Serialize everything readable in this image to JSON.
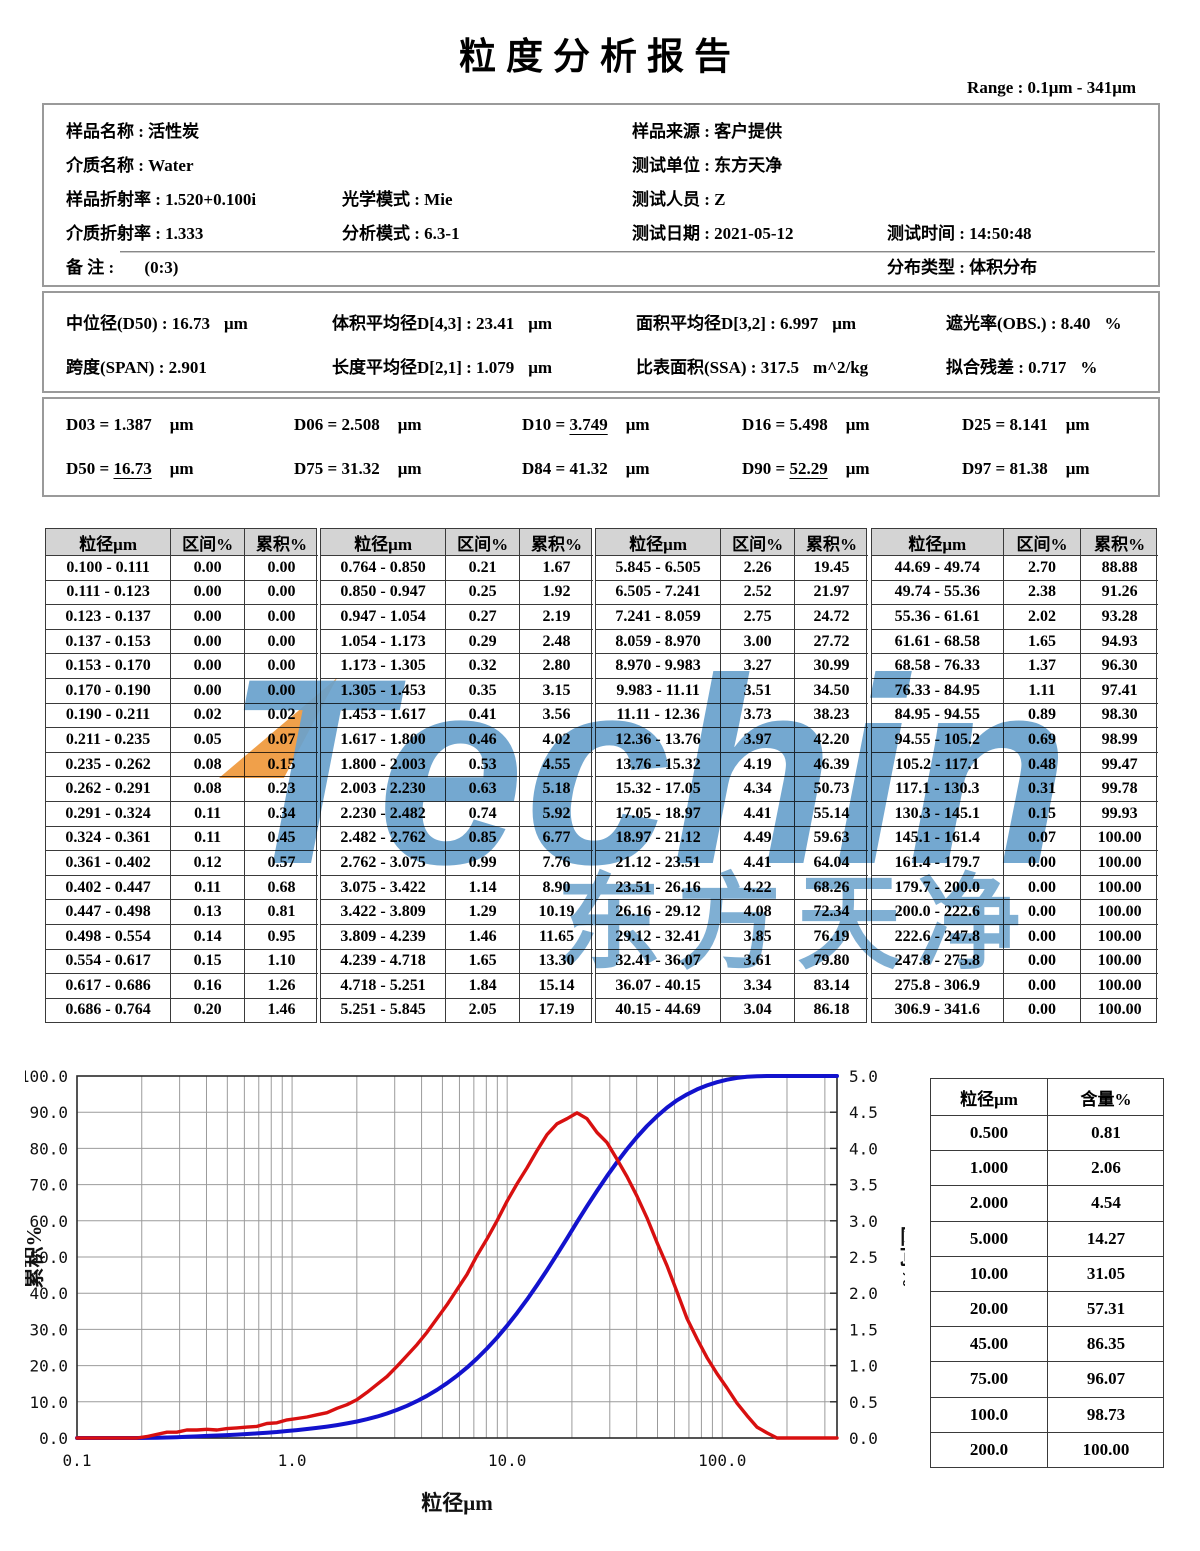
{
  "title": "粒度分析报告",
  "range_label": "Range : 0.1μm - 341μm",
  "info": {
    "sample_name": {
      "label": "样品名称",
      "value": "活性炭"
    },
    "sample_source": {
      "label": "样品来源",
      "value": "客户提供"
    },
    "medium_name": {
      "label": "介质名称",
      "value": "Water"
    },
    "test_unit": {
      "label": "测试单位",
      "value": "东方天净"
    },
    "sample_ri": {
      "label": "样品折射率",
      "value": "1.520+0.100i"
    },
    "optical_mode": {
      "label": "光学模式",
      "value": "Mie"
    },
    "tester": {
      "label": "测试人员",
      "value": "Z"
    },
    "medium_ri": {
      "label": "介质折射率",
      "value": "1.333"
    },
    "analysis_mode": {
      "label": "分析模式",
      "value": "6.3-1"
    },
    "test_date": {
      "label": "测试日期",
      "value": "2021-05-12"
    },
    "test_time": {
      "label": "测试时间",
      "value": "14:50:48"
    },
    "remark": {
      "label": "备  注",
      "value": "(0:3)"
    },
    "dist_type": {
      "label": "分布类型",
      "value": "体积分布"
    }
  },
  "stats": [
    [
      {
        "label": "中位径(D50)",
        "value": "16.73",
        "unit": "μm"
      },
      {
        "label": "体积平均径D[4,3]",
        "value": "23.41",
        "unit": "μm"
      },
      {
        "label": "面积平均径D[3,2]",
        "value": "6.997",
        "unit": "μm"
      },
      {
        "label": "遮光率(OBS.)",
        "value": "8.40",
        "unit": "%"
      }
    ],
    [
      {
        "label": "跨度(SPAN)",
        "value": "2.901",
        "unit": ""
      },
      {
        "label": "长度平均径D[2,1]",
        "value": "1.079",
        "unit": "μm"
      },
      {
        "label": "比表面积(SSA)",
        "value": "317.5",
        "unit": "m^2/kg"
      },
      {
        "label": "拟合残差",
        "value": "0.717",
        "unit": "%"
      }
    ]
  ],
  "d_values": [
    [
      {
        "name": "D03",
        "value": "1.387",
        "unit": "μm",
        "underline": false
      },
      {
        "name": "D06",
        "value": "2.508",
        "unit": "μm",
        "underline": false
      },
      {
        "name": "D10",
        "value": "3.749",
        "unit": "μm",
        "underline": true
      },
      {
        "name": "D16",
        "value": "5.498",
        "unit": "μm",
        "underline": false
      },
      {
        "name": "D25",
        "value": "8.141",
        "unit": "μm",
        "underline": false
      }
    ],
    [
      {
        "name": "D50",
        "value": "16.73",
        "unit": "μm",
        "underline": true
      },
      {
        "name": "D75",
        "value": "31.32",
        "unit": "μm",
        "underline": false
      },
      {
        "name": "D84",
        "value": "41.32",
        "unit": "μm",
        "underline": false
      },
      {
        "name": "D90",
        "value": "52.29",
        "unit": "μm",
        "underline": true
      },
      {
        "name": "D97",
        "value": "81.38",
        "unit": "μm",
        "underline": false
      }
    ]
  ],
  "tables": {
    "headers": [
      "粒径μm",
      "区间%",
      "累积%"
    ],
    "groups": [
      [
        [
          "0.100 - 0.111",
          "0.00",
          "0.00"
        ],
        [
          "0.111 - 0.123",
          "0.00",
          "0.00"
        ],
        [
          "0.123 - 0.137",
          "0.00",
          "0.00"
        ],
        [
          "0.137 - 0.153",
          "0.00",
          "0.00"
        ],
        [
          "0.153 - 0.170",
          "0.00",
          "0.00"
        ],
        [
          "0.170 - 0.190",
          "0.00",
          "0.00"
        ],
        [
          "0.190 - 0.211",
          "0.02",
          "0.02"
        ],
        [
          "0.211 - 0.235",
          "0.05",
          "0.07"
        ],
        [
          "0.235 - 0.262",
          "0.08",
          "0.15"
        ],
        [
          "0.262 - 0.291",
          "0.08",
          "0.23"
        ],
        [
          "0.291 - 0.324",
          "0.11",
          "0.34"
        ],
        [
          "0.324 - 0.361",
          "0.11",
          "0.45"
        ],
        [
          "0.361 - 0.402",
          "0.12",
          "0.57"
        ],
        [
          "0.402 - 0.447",
          "0.11",
          "0.68"
        ],
        [
          "0.447 - 0.498",
          "0.13",
          "0.81"
        ],
        [
          "0.498 - 0.554",
          "0.14",
          "0.95"
        ],
        [
          "0.554 - 0.617",
          "0.15",
          "1.10"
        ],
        [
          "0.617 - 0.686",
          "0.16",
          "1.26"
        ],
        [
          "0.686 - 0.764",
          "0.20",
          "1.46"
        ]
      ],
      [
        [
          "0.764 - 0.850",
          "0.21",
          "1.67"
        ],
        [
          "0.850 - 0.947",
          "0.25",
          "1.92"
        ],
        [
          "0.947 - 1.054",
          "0.27",
          "2.19"
        ],
        [
          "1.054 - 1.173",
          "0.29",
          "2.48"
        ],
        [
          "1.173 - 1.305",
          "0.32",
          "2.80"
        ],
        [
          "1.305 - 1.453",
          "0.35",
          "3.15"
        ],
        [
          "1.453 - 1.617",
          "0.41",
          "3.56"
        ],
        [
          "1.617 - 1.800",
          "0.46",
          "4.02"
        ],
        [
          "1.800 - 2.003",
          "0.53",
          "4.55"
        ],
        [
          "2.003 - 2.230",
          "0.63",
          "5.18"
        ],
        [
          "2.230 - 2.482",
          "0.74",
          "5.92"
        ],
        [
          "2.482 - 2.762",
          "0.85",
          "6.77"
        ],
        [
          "2.762 - 3.075",
          "0.99",
          "7.76"
        ],
        [
          "3.075 - 3.422",
          "1.14",
          "8.90"
        ],
        [
          "3.422 - 3.809",
          "1.29",
          "10.19"
        ],
        [
          "3.809 - 4.239",
          "1.46",
          "11.65"
        ],
        [
          "4.239 - 4.718",
          "1.65",
          "13.30"
        ],
        [
          "4.718 - 5.251",
          "1.84",
          "15.14"
        ],
        [
          "5.251 - 5.845",
          "2.05",
          "17.19"
        ]
      ],
      [
        [
          "5.845 - 6.505",
          "2.26",
          "19.45"
        ],
        [
          "6.505 - 7.241",
          "2.52",
          "21.97"
        ],
        [
          "7.241 - 8.059",
          "2.75",
          "24.72"
        ],
        [
          "8.059 - 8.970",
          "3.00",
          "27.72"
        ],
        [
          "8.970 - 9.983",
          "3.27",
          "30.99"
        ],
        [
          "9.983 - 11.11",
          "3.51",
          "34.50"
        ],
        [
          "11.11 - 12.36",
          "3.73",
          "38.23"
        ],
        [
          "12.36 - 13.76",
          "3.97",
          "42.20"
        ],
        [
          "13.76 - 15.32",
          "4.19",
          "46.39"
        ],
        [
          "15.32 - 17.05",
          "4.34",
          "50.73"
        ],
        [
          "17.05 - 18.97",
          "4.41",
          "55.14"
        ],
        [
          "18.97 - 21.12",
          "4.49",
          "59.63"
        ],
        [
          "21.12 - 23.51",
          "4.41",
          "64.04"
        ],
        [
          "23.51 - 26.16",
          "4.22",
          "68.26"
        ],
        [
          "26.16 - 29.12",
          "4.08",
          "72.34"
        ],
        [
          "29.12 - 32.41",
          "3.85",
          "76.19"
        ],
        [
          "32.41 - 36.07",
          "3.61",
          "79.80"
        ],
        [
          "36.07 - 40.15",
          "3.34",
          "83.14"
        ],
        [
          "40.15 - 44.69",
          "3.04",
          "86.18"
        ]
      ],
      [
        [
          "44.69 - 49.74",
          "2.70",
          "88.88"
        ],
        [
          "49.74 - 55.36",
          "2.38",
          "91.26"
        ],
        [
          "55.36 - 61.61",
          "2.02",
          "93.28"
        ],
        [
          "61.61 - 68.58",
          "1.65",
          "94.93"
        ],
        [
          "68.58 - 76.33",
          "1.37",
          "96.30"
        ],
        [
          "76.33 - 84.95",
          "1.11",
          "97.41"
        ],
        [
          "84.95 - 94.55",
          "0.89",
          "98.30"
        ],
        [
          "94.55 - 105.2",
          "0.69",
          "98.99"
        ],
        [
          "105.2 - 117.1",
          "0.48",
          "99.47"
        ],
        [
          "117.1 - 130.3",
          "0.31",
          "99.78"
        ],
        [
          "130.3 - 145.1",
          "0.15",
          "99.93"
        ],
        [
          "145.1 - 161.4",
          "0.07",
          "100.00"
        ],
        [
          "161.4 - 179.7",
          "0.00",
          "100.00"
        ],
        [
          "179.7 - 200.0",
          "0.00",
          "100.00"
        ],
        [
          "200.0 - 222.6",
          "0.00",
          "100.00"
        ],
        [
          "222.6 - 247.8",
          "0.00",
          "100.00"
        ],
        [
          "247.8 - 275.8",
          "0.00",
          "100.00"
        ],
        [
          "275.8 - 306.9",
          "0.00",
          "100.00"
        ],
        [
          "306.9 - 341.6",
          "0.00",
          "100.00"
        ]
      ]
    ]
  },
  "watermark": {
    "text": "Techin",
    "subtext": "东方天净",
    "color": "#69a1cc",
    "accent": "#ef9b40"
  },
  "chart_data": {
    "type": "line",
    "xlabel": "粒径μm",
    "left_ylabel": "累积%",
    "right_ylabel": "区间%",
    "xlim": [
      0.1,
      341.6
    ],
    "left_ylim": [
      0,
      100
    ],
    "right_ylim": [
      0,
      5
    ],
    "x_ticks": [
      "0.1",
      "1.0",
      "10.0",
      "100.0"
    ],
    "left_ticks": [
      "0.0",
      "10.0",
      "20.0",
      "30.0",
      "40.0",
      "50.0",
      "60.0",
      "70.0",
      "80.0",
      "90.0",
      "100.0"
    ],
    "right_ticks": [
      "0.0",
      "0.5",
      "1.0",
      "1.5",
      "2.0",
      "2.5",
      "3.0",
      "3.5",
      "4.0",
      "4.5",
      "5.0"
    ],
    "grid": true,
    "x": [
      0.1,
      0.111,
      0.123,
      0.137,
      0.153,
      0.17,
      0.19,
      0.211,
      0.235,
      0.262,
      0.291,
      0.324,
      0.361,
      0.402,
      0.447,
      0.498,
      0.554,
      0.617,
      0.686,
      0.764,
      0.85,
      0.947,
      1.054,
      1.173,
      1.305,
      1.453,
      1.617,
      1.8,
      2.003,
      2.23,
      2.482,
      2.762,
      3.075,
      3.422,
      3.809,
      4.239,
      4.718,
      5.251,
      5.845,
      6.505,
      7.241,
      8.059,
      8.97,
      9.983,
      11.11,
      12.36,
      13.76,
      15.32,
      17.05,
      18.97,
      21.12,
      23.51,
      26.16,
      29.12,
      32.41,
      36.07,
      40.15,
      44.69,
      49.74,
      55.36,
      61.61,
      68.58,
      76.33,
      84.95,
      94.55,
      105.2,
      117.1,
      130.3,
      145.1,
      161.4,
      179.7,
      200.0,
      222.6,
      247.8,
      275.8,
      306.9,
      341.6
    ],
    "series": [
      {
        "name": "累积%",
        "axis": "left",
        "color": "#1212cd",
        "values": [
          0,
          0,
          0,
          0,
          0,
          0,
          0,
          0.02,
          0.07,
          0.15,
          0.23,
          0.34,
          0.45,
          0.57,
          0.68,
          0.81,
          0.95,
          1.1,
          1.26,
          1.46,
          1.67,
          1.92,
          2.19,
          2.48,
          2.8,
          3.15,
          3.56,
          4.02,
          4.55,
          5.18,
          5.92,
          6.77,
          7.76,
          8.9,
          10.19,
          11.65,
          13.3,
          15.14,
          17.19,
          19.45,
          21.97,
          24.72,
          27.72,
          30.99,
          34.5,
          38.23,
          42.2,
          46.39,
          50.73,
          55.14,
          59.63,
          64.04,
          68.26,
          72.34,
          76.19,
          79.8,
          83.14,
          86.18,
          88.88,
          91.26,
          93.28,
          94.93,
          96.3,
          97.41,
          98.3,
          98.99,
          99.47,
          99.78,
          99.93,
          100.0,
          100.0,
          100.0,
          100.0,
          100.0,
          100.0,
          100.0,
          100.0
        ]
      },
      {
        "name": "区间%",
        "axis": "right",
        "color": "#d81010",
        "values": [
          0,
          0,
          0,
          0,
          0,
          0,
          0,
          0.02,
          0.05,
          0.08,
          0.08,
          0.11,
          0.11,
          0.12,
          0.11,
          0.13,
          0.14,
          0.15,
          0.16,
          0.2,
          0.21,
          0.25,
          0.27,
          0.29,
          0.32,
          0.35,
          0.41,
          0.46,
          0.53,
          0.63,
          0.74,
          0.85,
          0.99,
          1.14,
          1.29,
          1.46,
          1.65,
          1.84,
          2.05,
          2.26,
          2.52,
          2.75,
          3.0,
          3.27,
          3.51,
          3.73,
          3.97,
          4.19,
          4.34,
          4.41,
          4.49,
          4.41,
          4.22,
          4.08,
          3.85,
          3.61,
          3.34,
          3.04,
          2.7,
          2.38,
          2.02,
          1.65,
          1.37,
          1.11,
          0.89,
          0.69,
          0.48,
          0.31,
          0.15,
          0.07,
          0.0,
          0.0,
          0.0,
          0.0,
          0.0,
          0.0,
          0.0
        ]
      }
    ]
  },
  "content_table": {
    "headers": [
      "粒径μm",
      "含量%"
    ],
    "rows": [
      [
        "0.500",
        "0.81"
      ],
      [
        "1.000",
        "2.06"
      ],
      [
        "2.000",
        "4.54"
      ],
      [
        "5.000",
        "14.27"
      ],
      [
        "10.00",
        "31.05"
      ],
      [
        "20.00",
        "57.31"
      ],
      [
        "45.00",
        "86.35"
      ],
      [
        "75.00",
        "96.07"
      ],
      [
        "100.0",
        "98.73"
      ],
      [
        "200.0",
        "100.00"
      ]
    ]
  }
}
